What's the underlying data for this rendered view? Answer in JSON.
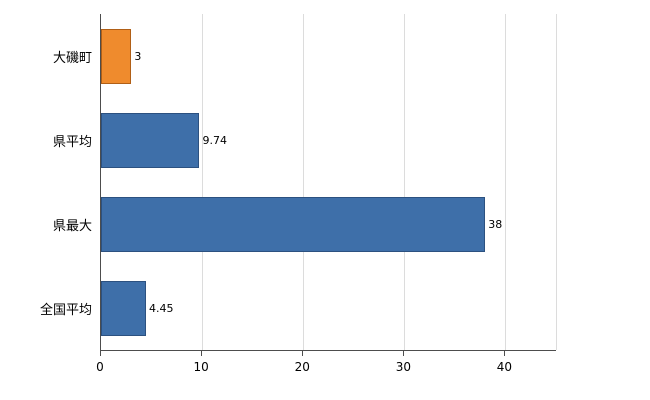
{
  "chart_data": {
    "type": "bar",
    "orientation": "horizontal",
    "title": "",
    "xlabel": "",
    "ylabel": "",
    "categories": [
      "大磯町",
      "県平均",
      "県最大",
      "全国平均"
    ],
    "values": [
      3,
      9.74,
      38,
      4.45
    ],
    "value_labels": [
      "3",
      "9.74",
      "38",
      "4.45"
    ],
    "bar_colors": [
      "#ef8b2d",
      "#3e6fa9",
      "#3e6fa9",
      "#3e6fa9"
    ],
    "bar_border_colors": [
      "#b05f16",
      "#2c5180",
      "#2c5180",
      "#2c5180"
    ],
    "xlim": [
      0,
      45
    ],
    "ticks": [
      0,
      10,
      20,
      30,
      40
    ],
    "tick_labels": [
      "0",
      "10",
      "20",
      "30",
      "40"
    ],
    "grid": true,
    "legend": false
  },
  "colors": {
    "background": "#ffffff",
    "gridline": "#dcdcdc",
    "axis": "#4d4d4d",
    "text": "#000000"
  }
}
